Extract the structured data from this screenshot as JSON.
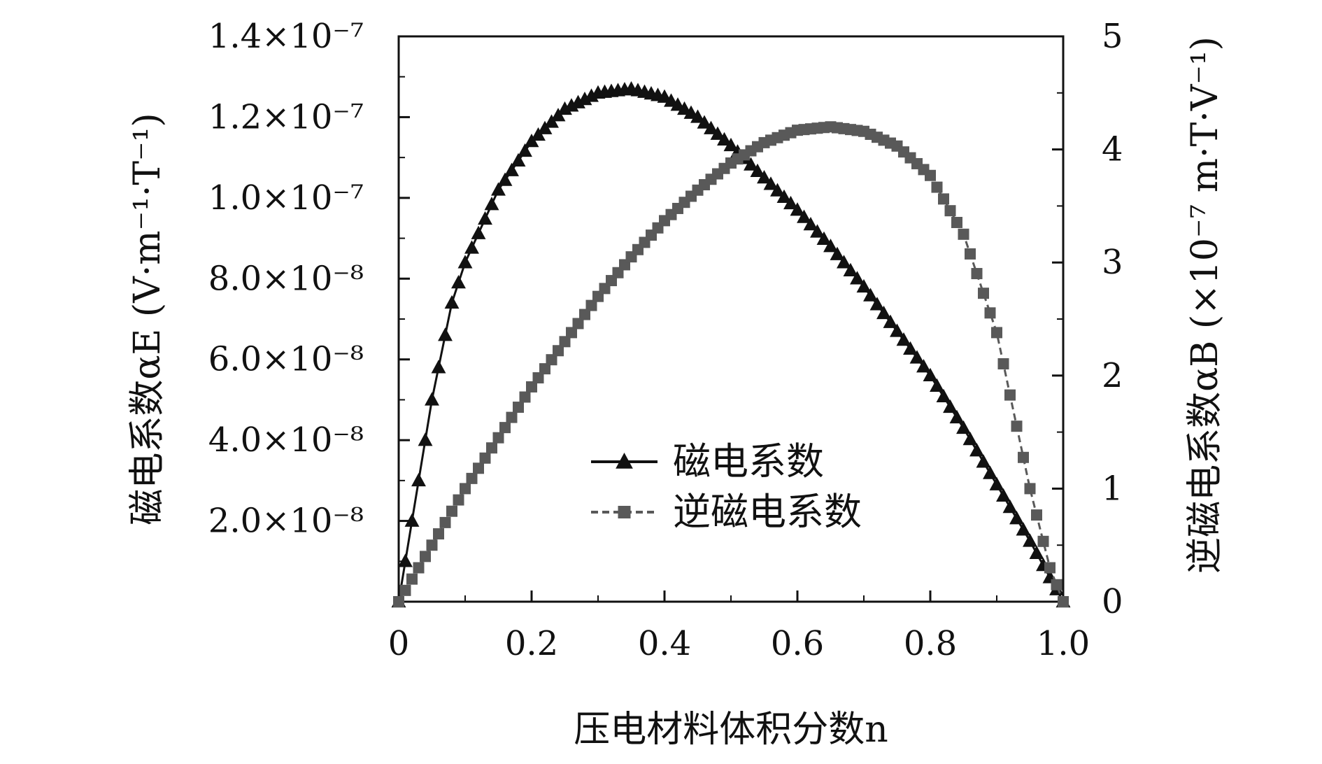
{
  "chart_data": {
    "type": "line",
    "x_axis": {
      "label": "压电材料体积分数n",
      "range": [
        0,
        1.0
      ],
      "tick_values": [
        0,
        0.2,
        0.4,
        0.6,
        0.8,
        1.0
      ],
      "tick_labels": [
        "0",
        "0.2",
        "0.4",
        "0.6",
        "0.8",
        "1.0"
      ]
    },
    "y_left_axis": {
      "label": "磁电系数αE (V·m⁻¹·T⁻¹)",
      "range": [
        0,
        1.4e-07
      ],
      "tick_values": [
        2e-08,
        4e-08,
        6e-08,
        8e-08,
        1e-07,
        1.2e-07,
        1.4e-07
      ],
      "tick_labels": [
        "2.0×10⁻⁸",
        "4.0×10⁻⁸",
        "6.0×10⁻⁸",
        "8.0×10⁻⁸",
        "1.0×10⁻⁷",
        "1.2×10⁻⁷",
        "1.4×10⁻⁷"
      ]
    },
    "y_right_axis": {
      "label": "逆磁电系数αB (×10⁻⁷ m·T·V⁻¹)",
      "range": [
        0,
        5
      ],
      "tick_values": [
        0,
        1,
        2,
        3,
        4,
        5
      ],
      "tick_labels": [
        "0",
        "1",
        "2",
        "3",
        "4",
        "5"
      ]
    },
    "grid": false,
    "legend": {
      "placement": "lower-center",
      "entries": [
        "磁电系数",
        "逆磁电系数"
      ]
    },
    "series": [
      {
        "name": "磁电系数",
        "axis": "left",
        "marker": "triangle",
        "color": "#111111",
        "x": [
          0,
          0.02,
          0.05,
          0.08,
          0.1,
          0.15,
          0.2,
          0.25,
          0.3,
          0.35,
          0.4,
          0.45,
          0.5,
          0.55,
          0.6,
          0.65,
          0.7,
          0.75,
          0.8,
          0.85,
          0.9,
          0.95,
          1.0
        ],
        "y": [
          0,
          2e-08,
          5e-08,
          7.4e-08,
          8.4e-08,
          1.02e-07,
          1.14e-07,
          1.22e-07,
          1.26e-07,
          1.27e-07,
          1.25e-07,
          1.2e-07,
          1.13e-07,
          1.05e-07,
          9.7e-08,
          8.8e-08,
          7.8e-08,
          6.7e-08,
          5.6e-08,
          4.3e-08,
          2.9e-08,
          1.5e-08,
          0
        ]
      },
      {
        "name": "逆磁电系数",
        "axis": "right",
        "marker": "square",
        "color": "#595959",
        "x": [
          0,
          0.05,
          0.1,
          0.15,
          0.2,
          0.25,
          0.3,
          0.35,
          0.4,
          0.45,
          0.5,
          0.55,
          0.6,
          0.65,
          0.7,
          0.75,
          0.8,
          0.85,
          0.9,
          0.95,
          0.98,
          1.0
        ],
        "y": [
          0,
          0.5,
          1.0,
          1.45,
          1.9,
          2.3,
          2.7,
          3.05,
          3.37,
          3.64,
          3.88,
          4.06,
          4.17,
          4.2,
          4.16,
          4.03,
          3.77,
          3.25,
          2.38,
          1.0,
          0.3,
          0
        ]
      }
    ]
  }
}
